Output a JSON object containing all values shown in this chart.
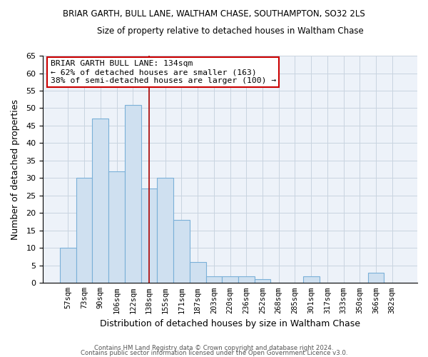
{
  "title": "BRIAR GARTH, BULL LANE, WALTHAM CHASE, SOUTHAMPTON, SO32 2LS",
  "subtitle": "Size of property relative to detached houses in Waltham Chase",
  "xlabel": "Distribution of detached houses by size in Waltham Chase",
  "ylabel": "Number of detached properties",
  "footer_line1": "Contains HM Land Registry data © Crown copyright and database right 2024.",
  "footer_line2": "Contains public sector information licensed under the Open Government Licence v3.0.",
  "bin_labels": [
    "57sqm",
    "73sqm",
    "90sqm",
    "106sqm",
    "122sqm",
    "138sqm",
    "155sqm",
    "171sqm",
    "187sqm",
    "203sqm",
    "220sqm",
    "236sqm",
    "252sqm",
    "268sqm",
    "285sqm",
    "301sqm",
    "317sqm",
    "333sqm",
    "350sqm",
    "366sqm",
    "382sqm"
  ],
  "bar_heights": [
    10,
    30,
    47,
    32,
    51,
    27,
    30,
    18,
    6,
    2,
    2,
    2,
    1,
    0,
    0,
    2,
    0,
    0,
    0,
    3,
    0
  ],
  "bar_color": "#cfe0f0",
  "bar_edge_color": "#7ab0d8",
  "vline_x": 5,
  "vline_color": "#aa0000",
  "annotation_text": "BRIAR GARTH BULL LANE: 134sqm\n← 62% of detached houses are smaller (163)\n38% of semi-detached houses are larger (100) →",
  "ylim": [
    0,
    65
  ],
  "yticks": [
    0,
    5,
    10,
    15,
    20,
    25,
    30,
    35,
    40,
    45,
    50,
    55,
    60,
    65
  ],
  "grid_color": "#c8d4e0",
  "background_color": "#ffffff",
  "plot_bg_color": "#edf2f9"
}
